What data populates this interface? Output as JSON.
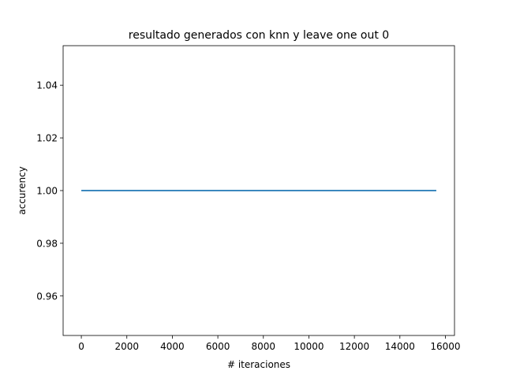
{
  "chart_data": {
    "type": "line",
    "title": "resultado generados con knn y leave one out 0",
    "xlabel": "# iteraciones",
    "ylabel": "accurency",
    "xlim": [
      -800,
      16400
    ],
    "ylim": [
      0.945,
      1.055
    ],
    "xticks": [
      0,
      2000,
      4000,
      6000,
      8000,
      10000,
      12000,
      14000,
      16000
    ],
    "yticks": [
      0.96,
      0.98,
      1.0,
      1.02,
      1.04
    ],
    "ytick_labels": [
      "0.96",
      "0.98",
      "1.00",
      "1.02",
      "1.04"
    ],
    "grid": false,
    "series": [
      {
        "color": "#1f77b4",
        "x": [
          0,
          15600
        ],
        "y": [
          1.0,
          1.0
        ]
      }
    ]
  }
}
